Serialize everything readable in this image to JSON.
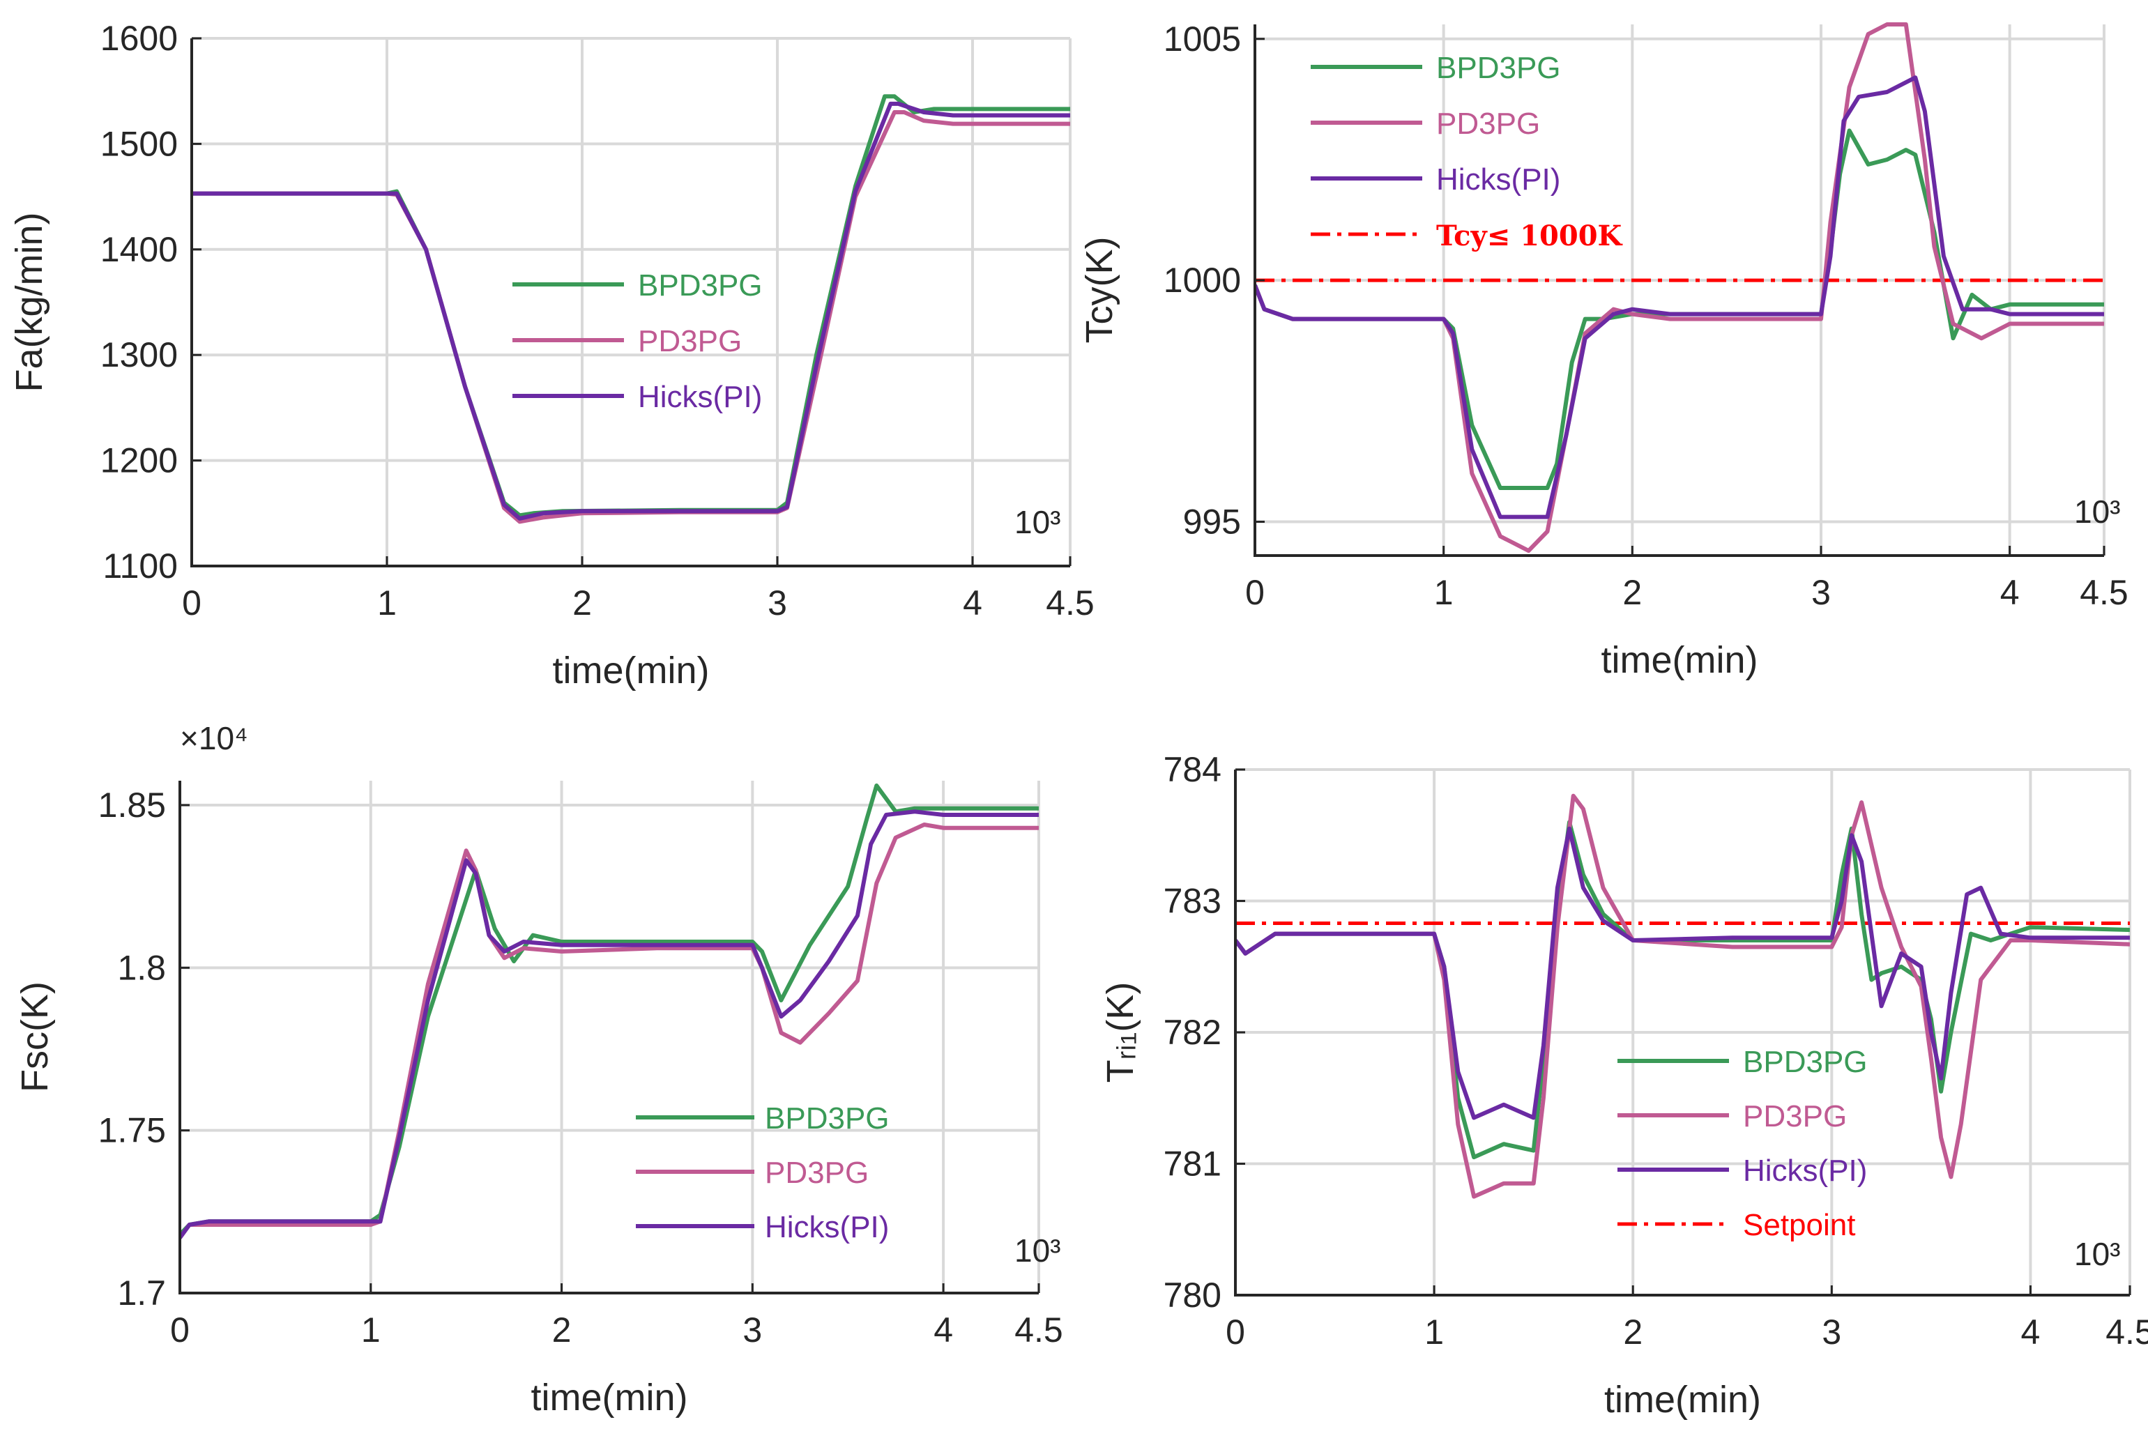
{
  "colors": {
    "BPD3PG": "#3a9a57",
    "PD3PG": "#c05a92",
    "Hicks(PI)": "#6a2aa3",
    "limit": "#ff0000",
    "axis": "#262626",
    "grid": "#d9d9d9"
  },
  "chart_data": [
    {
      "type": "line",
      "title": "",
      "xlabel": "time(min)",
      "ylabel": "Fa(kg/min)",
      "xlim": [
        0,
        4.5
      ],
      "ylim": [
        1100,
        1600
      ],
      "xticks": [
        0,
        1,
        2,
        3,
        4,
        4.5
      ],
      "xtick_labels": [
        "0",
        "1",
        "2",
        "3",
        "4",
        "4.5"
      ],
      "yticks": [
        1100,
        1200,
        1300,
        1400,
        1500,
        1600
      ],
      "ytick_labels": [
        "1100",
        "1200",
        "1300",
        "1400",
        "1500",
        "1600"
      ],
      "corner_label": "10³",
      "exponent_label": "",
      "legend_location": "center",
      "series": [
        {
          "name": "BPD3PG",
          "x": [
            0,
            0.5,
            1.0,
            1.05,
            1.2,
            1.4,
            1.6,
            1.68,
            1.75,
            1.9,
            2.5,
            3.0,
            3.05,
            3.2,
            3.4,
            3.55,
            3.6,
            3.7,
            3.8,
            4.0,
            4.5
          ],
          "y": [
            1453,
            1453,
            1453,
            1455,
            1400,
            1270,
            1160,
            1148,
            1150,
            1152,
            1153,
            1153,
            1160,
            1300,
            1460,
            1545,
            1545,
            1530,
            1533,
            1533,
            1533
          ]
        },
        {
          "name": "PD3PG",
          "x": [
            0,
            0.5,
            1.0,
            1.05,
            1.2,
            1.4,
            1.6,
            1.68,
            1.8,
            2.0,
            2.5,
            3.0,
            3.05,
            3.2,
            3.4,
            3.6,
            3.65,
            3.75,
            3.9,
            4.0,
            4.5
          ],
          "y": [
            1453,
            1453,
            1453,
            1452,
            1400,
            1270,
            1155,
            1142,
            1146,
            1150,
            1151,
            1151,
            1155,
            1280,
            1450,
            1530,
            1530,
            1522,
            1519,
            1519,
            1519
          ]
        },
        {
          "name": "Hicks(PI)",
          "x": [
            0,
            0.5,
            1.0,
            1.05,
            1.2,
            1.4,
            1.6,
            1.68,
            1.8,
            2.0,
            2.5,
            3.0,
            3.05,
            3.2,
            3.4,
            3.58,
            3.62,
            3.75,
            3.9,
            4.0,
            4.5
          ],
          "y": [
            1453,
            1453,
            1453,
            1453,
            1400,
            1270,
            1158,
            1145,
            1150,
            1152,
            1152,
            1152,
            1156,
            1290,
            1455,
            1538,
            1538,
            1530,
            1527,
            1527,
            1527
          ]
        }
      ]
    },
    {
      "type": "line",
      "title": "",
      "xlabel": "time(min)",
      "ylabel": "Tcy(K)",
      "xlim": [
        0,
        4.5
      ],
      "ylim": [
        994.3,
        1005.3
      ],
      "xticks": [
        0,
        1,
        2,
        3,
        4,
        4.5
      ],
      "xtick_labels": [
        "0",
        "1",
        "2",
        "3",
        "4",
        "4.5"
      ],
      "yticks": [
        995,
        1000,
        1005
      ],
      "ytick_labels": [
        "995",
        "1000",
        "1005"
      ],
      "corner_label": "10³",
      "exponent_label": "",
      "legend_location": "top-left",
      "reference_line": {
        "label": "Tcy≤ 1000K",
        "y": 1000
      },
      "series": [
        {
          "name": "BPD3PG",
          "x": [
            0,
            0.05,
            0.2,
            1.0,
            1.05,
            1.15,
            1.3,
            1.55,
            1.6,
            1.68,
            1.75,
            1.85,
            2.0,
            2.2,
            3.0,
            3.05,
            3.1,
            3.15,
            3.25,
            3.35,
            3.45,
            3.5,
            3.6,
            3.7,
            3.8,
            3.9,
            4.0,
            4.5
          ],
          "y": [
            999.9,
            999.4,
            999.2,
            999.2,
            999.0,
            997.0,
            995.7,
            995.7,
            996.2,
            998.3,
            999.2,
            999.2,
            999.3,
            999.3,
            999.3,
            1000.6,
            1002.2,
            1003.1,
            1002.4,
            1002.5,
            1002.7,
            1002.6,
            1001.0,
            998.8,
            999.7,
            999.4,
            999.5,
            999.5
          ]
        },
        {
          "name": "PD3PG",
          "x": [
            0,
            0.05,
            0.2,
            1.0,
            1.05,
            1.15,
            1.3,
            1.45,
            1.55,
            1.65,
            1.75,
            1.9,
            2.0,
            2.2,
            3.0,
            3.05,
            3.15,
            3.25,
            3.35,
            3.45,
            3.55,
            3.6,
            3.7,
            3.85,
            4.0,
            4.5
          ],
          "y": [
            999.9,
            999.4,
            999.2,
            999.2,
            998.8,
            996.0,
            994.7,
            994.4,
            994.8,
            996.8,
            998.9,
            999.4,
            999.3,
            999.2,
            999.2,
            1001.2,
            1004.0,
            1005.1,
            1005.3,
            1005.3,
            1002.5,
            1000.7,
            999.1,
            998.8,
            999.1,
            999.1
          ]
        },
        {
          "name": "Hicks(PI)",
          "x": [
            0,
            0.05,
            0.2,
            1.0,
            1.05,
            1.15,
            1.3,
            1.55,
            1.65,
            1.75,
            1.9,
            2.0,
            2.2,
            3.0,
            3.05,
            3.12,
            3.2,
            3.35,
            3.5,
            3.55,
            3.65,
            3.75,
            3.9,
            4.0,
            4.5
          ],
          "y": [
            999.9,
            999.4,
            999.2,
            999.2,
            998.9,
            996.5,
            995.1,
            995.1,
            996.8,
            998.8,
            999.3,
            999.4,
            999.3,
            999.3,
            1000.5,
            1003.3,
            1003.8,
            1003.9,
            1004.2,
            1003.5,
            1000.5,
            999.4,
            999.4,
            999.3,
            999.3
          ]
        }
      ]
    },
    {
      "type": "line",
      "title": "",
      "xlabel": "time(min)",
      "ylabel": "Fsc(K)",
      "xlim": [
        0,
        4.5
      ],
      "ylim": [
        1.7,
        1.8575
      ],
      "xticks": [
        0,
        1,
        2,
        3,
        4,
        4.5
      ],
      "xtick_labels": [
        "0",
        "1",
        "2",
        "3",
        "4",
        "4.5"
      ],
      "yticks": [
        1.7,
        1.75,
        1.8,
        1.85
      ],
      "ytick_labels": [
        "1.7",
        "1.75",
        "1.8",
        "1.85"
      ],
      "corner_label": "10³",
      "exponent_label": "×10⁴",
      "legend_location": "bottom-right",
      "series": [
        {
          "name": "BPD3PG",
          "x": [
            0,
            0.05,
            0.15,
            1.0,
            1.05,
            1.15,
            1.3,
            1.55,
            1.65,
            1.75,
            1.85,
            2.0,
            2.5,
            3.0,
            3.05,
            3.15,
            3.3,
            3.5,
            3.6,
            3.65,
            3.75,
            3.85,
            4.0,
            4.5
          ],
          "y": [
            1.718,
            1.721,
            1.722,
            1.722,
            1.724,
            1.745,
            1.785,
            1.83,
            1.812,
            1.802,
            1.81,
            1.808,
            1.808,
            1.808,
            1.805,
            1.79,
            1.807,
            1.825,
            1.846,
            1.856,
            1.848,
            1.849,
            1.849,
            1.849
          ]
        },
        {
          "name": "PD3PG",
          "x": [
            0,
            0.05,
            0.15,
            1.0,
            1.05,
            1.15,
            1.3,
            1.5,
            1.55,
            1.62,
            1.7,
            1.8,
            2.0,
            2.5,
            3.0,
            3.05,
            3.15,
            3.25,
            3.4,
            3.55,
            3.65,
            3.75,
            3.9,
            4.0,
            4.5
          ],
          "y": [
            1.717,
            1.721,
            1.721,
            1.721,
            1.722,
            1.75,
            1.795,
            1.836,
            1.83,
            1.81,
            1.803,
            1.806,
            1.805,
            1.806,
            1.806,
            1.8,
            1.78,
            1.777,
            1.786,
            1.796,
            1.826,
            1.84,
            1.844,
            1.843,
            1.843
          ]
        },
        {
          "name": "Hicks(PI)",
          "x": [
            0,
            0.05,
            0.15,
            1.0,
            1.05,
            1.15,
            1.3,
            1.5,
            1.55,
            1.62,
            1.7,
            1.8,
            2.0,
            2.5,
            3.0,
            3.05,
            3.15,
            3.25,
            3.4,
            3.55,
            3.62,
            3.7,
            3.85,
            4.0,
            4.5
          ],
          "y": [
            1.717,
            1.721,
            1.722,
            1.722,
            1.722,
            1.748,
            1.79,
            1.833,
            1.829,
            1.81,
            1.805,
            1.808,
            1.807,
            1.807,
            1.807,
            1.8,
            1.785,
            1.79,
            1.802,
            1.816,
            1.838,
            1.847,
            1.848,
            1.847,
            1.847
          ]
        }
      ]
    },
    {
      "type": "line",
      "title": "",
      "xlabel": "time(min)",
      "ylabel": "Tᵣᵢ₁(K)",
      "xlim": [
        0,
        4.5
      ],
      "ylim": [
        780,
        784
      ],
      "xticks": [
        0,
        1,
        2,
        3,
        4,
        4.5
      ],
      "xtick_labels": [
        "0",
        "1",
        "2",
        "3",
        "4",
        "4.5"
      ],
      "yticks": [
        780,
        781,
        782,
        783,
        784
      ],
      "ytick_labels": [
        "780",
        "781",
        "782",
        "783",
        "784"
      ],
      "corner_label": "10³",
      "exponent_label": "",
      "legend_location": "bottom-right",
      "reference_line": {
        "label": "Setpoint",
        "y": 782.83
      },
      "series": [
        {
          "name": "BPD3PG",
          "x": [
            0,
            0.05,
            0.2,
            1.0,
            1.05,
            1.12,
            1.2,
            1.35,
            1.5,
            1.55,
            1.62,
            1.68,
            1.75,
            1.85,
            2.0,
            2.5,
            3.0,
            3.05,
            3.1,
            3.15,
            3.2,
            3.25,
            3.35,
            3.45,
            3.5,
            3.55,
            3.6,
            3.7,
            3.8,
            4.0,
            4.5
          ],
          "y": [
            782.7,
            782.6,
            782.75,
            782.75,
            782.5,
            781.5,
            781.05,
            781.15,
            781.1,
            781.8,
            782.9,
            783.6,
            783.2,
            782.9,
            782.7,
            782.7,
            782.7,
            783.2,
            783.55,
            782.9,
            782.4,
            782.45,
            782.5,
            782.4,
            782.1,
            781.55,
            782.0,
            782.75,
            782.7,
            782.8,
            782.78
          ]
        },
        {
          "name": "PD3PG",
          "x": [
            0,
            0.05,
            0.2,
            1.0,
            1.05,
            1.12,
            1.2,
            1.35,
            1.5,
            1.55,
            1.62,
            1.7,
            1.75,
            1.85,
            2.0,
            2.5,
            3.0,
            3.05,
            3.1,
            3.15,
            3.25,
            3.35,
            3.45,
            3.5,
            3.55,
            3.6,
            3.65,
            3.75,
            3.9,
            4.0,
            4.5
          ],
          "y": [
            782.7,
            782.6,
            782.75,
            782.75,
            782.4,
            781.3,
            780.75,
            780.85,
            780.85,
            781.5,
            782.8,
            783.8,
            783.7,
            783.1,
            782.7,
            782.65,
            782.65,
            782.8,
            783.5,
            783.75,
            783.1,
            782.65,
            782.35,
            781.8,
            781.2,
            780.9,
            781.3,
            782.4,
            782.7,
            782.7,
            782.67
          ]
        },
        {
          "name": "Hicks(PI)",
          "x": [
            0,
            0.05,
            0.2,
            1.0,
            1.05,
            1.12,
            1.2,
            1.35,
            1.5,
            1.55,
            1.62,
            1.68,
            1.75,
            1.85,
            2.0,
            2.5,
            3.0,
            3.05,
            3.1,
            3.15,
            3.25,
            3.35,
            3.45,
            3.5,
            3.55,
            3.6,
            3.68,
            3.75,
            3.85,
            4.0,
            4.5
          ],
          "y": [
            782.7,
            782.6,
            782.75,
            782.75,
            782.5,
            781.7,
            781.35,
            781.45,
            781.35,
            781.9,
            783.1,
            783.55,
            783.1,
            782.85,
            782.7,
            782.72,
            782.72,
            783.0,
            783.5,
            783.3,
            782.2,
            782.6,
            782.5,
            782.0,
            781.65,
            782.3,
            783.05,
            783.1,
            782.75,
            782.72,
            782.72
          ]
        }
      ]
    }
  ]
}
